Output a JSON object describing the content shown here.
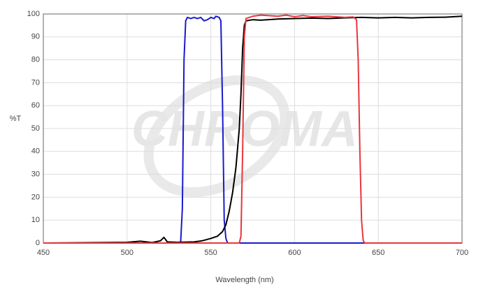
{
  "chart_data": {
    "type": "line",
    "watermark": "CHROMA",
    "xlabel": "Wavelength (nm)",
    "ylabel": "%T",
    "xlim": [
      450,
      700
    ],
    "xticks": [
      450,
      500,
      550,
      600,
      650,
      700
    ],
    "ylim": [
      0,
      100
    ],
    "yticks": [
      0,
      10,
      20,
      30,
      40,
      50,
      60,
      70,
      80,
      90,
      100
    ],
    "grid": true,
    "series": [
      {
        "color": "#1a1acc",
        "x": [
          450,
          500,
          531,
          532,
          533,
          534,
          535,
          536,
          538,
          540,
          542,
          544,
          546,
          548,
          550,
          552,
          553,
          555,
          556,
          557,
          558,
          559,
          560,
          600,
          650,
          700
        ],
        "values": [
          0,
          0,
          0,
          0.5,
          15,
          80,
          97,
          98.5,
          98,
          98.5,
          98,
          98.5,
          97,
          97.5,
          98.5,
          98,
          99,
          98.5,
          97,
          60,
          10,
          2,
          0,
          0,
          0,
          0
        ]
      },
      {
        "color": "#000000",
        "x": [
          450,
          500,
          508,
          515,
          520,
          522,
          524,
          530,
          540,
          545,
          550,
          554,
          557,
          559,
          561,
          563,
          565,
          567,
          568,
          569,
          570,
          571,
          575,
          580,
          590,
          600,
          610,
          620,
          630,
          640,
          650,
          660,
          670,
          680,
          690,
          700
        ],
        "values": [
          0,
          0.3,
          0.8,
          0.2,
          1.0,
          2.5,
          0.5,
          0.3,
          0.5,
          1,
          2,
          3,
          5,
          8,
          14,
          22,
          33,
          50,
          65,
          85,
          95,
          97,
          97.5,
          97.3,
          97.8,
          98,
          98.2,
          98,
          98.3,
          98.5,
          98.3,
          98.5,
          98.3,
          98.5,
          98.6,
          99
        ]
      },
      {
        "color": "#e8363c",
        "x": [
          450,
          500,
          550,
          567,
          568,
          569,
          570,
          571,
          575,
          580,
          590,
          595,
          600,
          605,
          610,
          620,
          630,
          635,
          637,
          638,
          639,
          640,
          641,
          642,
          670,
          700
        ],
        "values": [
          0,
          0,
          0,
          0,
          3,
          40,
          90,
          98,
          99,
          99.5,
          99,
          99.5,
          98.8,
          99.3,
          98.8,
          99,
          98.5,
          98.7,
          97.5,
          80,
          40,
          10,
          1,
          0,
          0,
          0
        ]
      }
    ]
  }
}
